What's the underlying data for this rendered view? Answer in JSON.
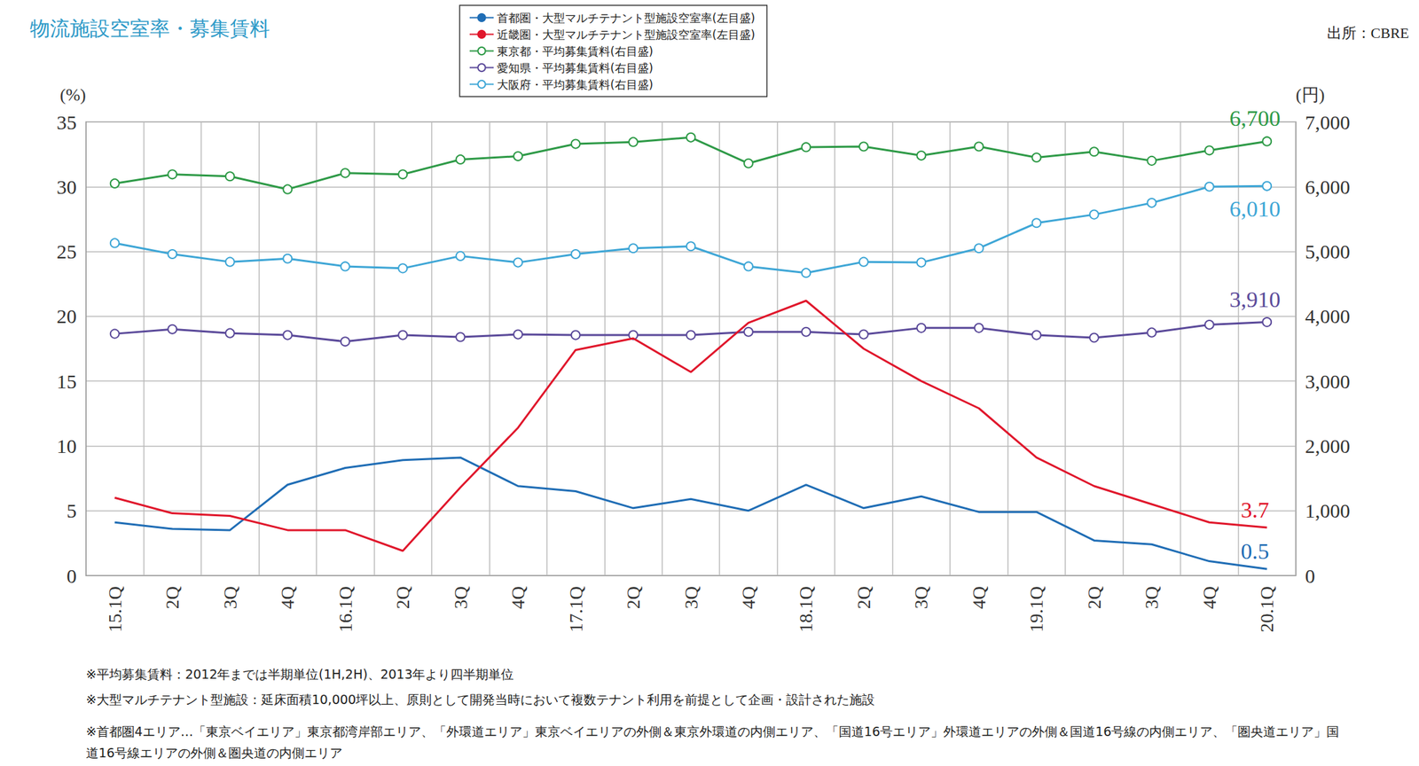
{
  "chart_data": {
    "type": "line",
    "title": "物流施設空室率・募集賃料",
    "source": "出所：CBRE",
    "y_label": "(%)",
    "y2_label": "(円)",
    "categories": [
      "15.1Q",
      "2Q",
      "3Q",
      "4Q",
      "16.1Q",
      "2Q",
      "3Q",
      "4Q",
      "17.1Q",
      "2Q",
      "3Q",
      "4Q",
      "18.1Q",
      "2Q",
      "3Q",
      "4Q",
      "19.1Q",
      "2Q",
      "3Q",
      "4Q",
      "20.1Q"
    ],
    "ylim": [
      0,
      35
    ],
    "yticks": [
      0,
      5,
      10,
      15,
      20,
      25,
      30,
      35
    ],
    "y2lim": [
      0,
      7000
    ],
    "y2ticks": [
      0,
      {
        "value": 1000,
        "label": "1,000"
      },
      {
        "value": 2000,
        "label": "2,000"
      },
      {
        "value": 3000,
        "label": "3,000"
      },
      {
        "value": 4000,
        "label": "4,000"
      },
      {
        "value": 5000,
        "label": "5,000"
      },
      {
        "value": 6000,
        "label": "6,000"
      },
      {
        "value": 7000,
        "label": "7,000"
      }
    ],
    "grid": true,
    "legend": "top",
    "series": [
      {
        "name": "首都圏・大型マルチテナント型施設空室率(左目盛)",
        "color": "#1f6db5",
        "marker": "none",
        "line_style": "solid",
        "values": [
          4.1,
          3.6,
          3.5,
          7.0,
          8.3,
          8.9,
          9.1,
          6.9,
          6.5,
          5.2,
          5.9,
          5.0,
          7.0,
          5.2,
          6.1,
          4.9,
          4.9,
          2.7,
          2.4,
          1.1,
          0.5
        ]
      },
      {
        "name": "近畿圏・大型マルチテナント型施設空室率(左目盛)",
        "color": "#e0162b",
        "marker": "none",
        "line_style": "solid",
        "values": [
          6.0,
          4.8,
          4.6,
          3.5,
          3.5,
          1.9,
          6.8,
          11.4,
          17.4,
          18.3,
          15.7,
          19.5,
          21.2,
          17.5,
          15.0,
          12.9,
          9.1,
          6.9,
          5.5,
          4.1,
          3.7
        ]
      },
      {
        "name": "東京都・平均募集賃料(右目盛)",
        "color": "#2e9a47",
        "marker": "open_circle",
        "line_style": "solid",
        "axis": "y2",
        "values": [
          6050,
          6190,
          6160,
          5960,
          6210,
          6190,
          6420,
          6470,
          6660,
          6690,
          6760,
          6360,
          6610,
          6620,
          6480,
          6620,
          6450,
          6540,
          6400,
          6560,
          6700
        ]
      },
      {
        "name": "愛知県・平均募集賃料(右目盛)",
        "color": "#5b4a9a",
        "marker": "open_circle",
        "line_style": "solid",
        "axis": "y2",
        "values": [
          3730,
          3800,
          3740,
          3710,
          3610,
          3710,
          3680,
          3720,
          3710,
          3710,
          3710,
          3760,
          3760,
          3720,
          3820,
          3820,
          3710,
          3670,
          3750,
          3870,
          3910
        ]
      },
      {
        "name": "大阪府・平均募集賃料(右目盛)",
        "color": "#3ea6d6",
        "marker": "open_circle",
        "line_style": "solid",
        "axis": "y2",
        "values": [
          5130,
          4960,
          4840,
          4890,
          4770,
          4740,
          4930,
          4830,
          4960,
          5050,
          5080,
          4770,
          4670,
          4840,
          4830,
          5050,
          5440,
          5570,
          5750,
          6000,
          6010
        ]
      }
    ],
    "annotations": [
      {
        "series": "東京都・平均募集賃料(右目盛)",
        "category": "20.1Q",
        "text": "6,700"
      },
      {
        "series": "大阪府・平均募集賃料(右目盛)",
        "category": "20.1Q",
        "text": "6,010"
      },
      {
        "series": "愛知県・平均募集賃料(右目盛)",
        "category": "20.1Q",
        "text": "3,910"
      },
      {
        "series": "近畿圏・大型マルチテナント型施設空室率(左目盛)",
        "category": "20.1Q",
        "text": "3.7"
      },
      {
        "series": "首都圏・大型マルチテナント型施設空室率(左目盛)",
        "category": "20.1Q",
        "text": "0.5"
      }
    ],
    "notes": [
      "※平均募集賃料：2012年までは半期単位(1H,2H)、2013年より四半期単位",
      "※大型マルチテナント型施設：延床面積10,000坪以上、原則として開発当時において複数テナント利用を前提として企画・設計された施設",
      "※首都圏4エリア…「東京ベイエリア」東京都湾岸部エリア、「外環道エリア」東京ベイエリアの外側＆東京外環道の内側エリア、「国道16号エリア」外環道エリアの外側＆国道16号線の内側エリア、「圏央道エリア」国道16号線エリアの外側＆圏央道の内側エリア"
    ]
  }
}
